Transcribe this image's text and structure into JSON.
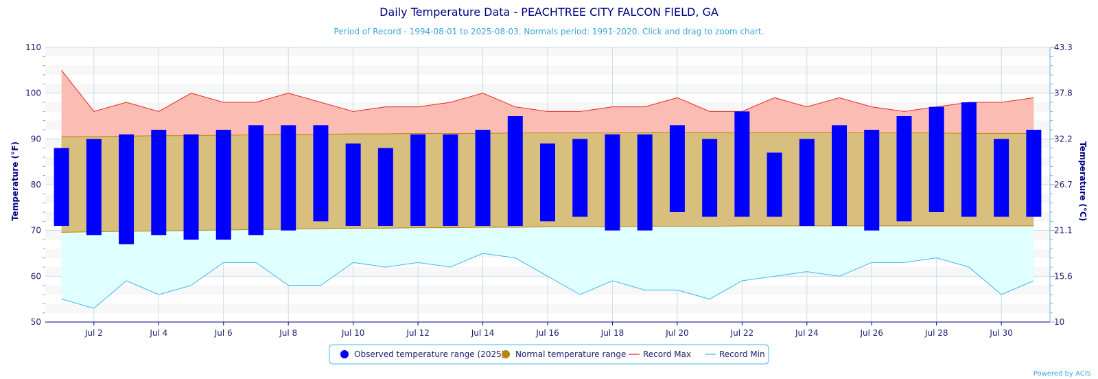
{
  "chart_data": {
    "type": "bar",
    "title": "Daily Temperature Data - PEACHTREE CITY FALCON FIELD, GA",
    "subtitle": "Period of Record - 1994-08-01 to 2025-08-03. Normals period: 1991-2020. Click and drag to zoom chart.",
    "ylabel_left": "Temperature (°F)",
    "ylabel_right": "Temperature (°C)",
    "ylim": [
      50,
      110
    ],
    "yticks_left": [
      "50",
      "60",
      "70",
      "80",
      "90",
      "100",
      "110"
    ],
    "yticks_right": [
      "10",
      "15.6",
      "21.1",
      "26.7",
      "32.2",
      "37.8",
      "43.3"
    ],
    "x_days": [
      1,
      31
    ],
    "x_tick_labels": [
      {
        "day": 2,
        "label": "Jul 2"
      },
      {
        "day": 4,
        "label": "Jul 4"
      },
      {
        "day": 6,
        "label": "Jul 6"
      },
      {
        "day": 8,
        "label": "Jul 8"
      },
      {
        "day": 10,
        "label": "Jul 10"
      },
      {
        "day": 12,
        "label": "Jul 12"
      },
      {
        "day": 14,
        "label": "Jul 14"
      },
      {
        "day": 16,
        "label": "Jul 16"
      },
      {
        "day": 18,
        "label": "Jul 18"
      },
      {
        "day": 20,
        "label": "Jul 20"
      },
      {
        "day": 22,
        "label": "Jul 22"
      },
      {
        "day": 24,
        "label": "Jul 24"
      },
      {
        "day": 26,
        "label": "Jul 26"
      },
      {
        "day": 28,
        "label": "Jul 28"
      },
      {
        "day": 30,
        "label": "Jul 30"
      }
    ],
    "grid": true,
    "legend_position": "bottom-center",
    "observed": [
      {
        "day": 1,
        "low": 71,
        "high": 88
      },
      {
        "day": 2,
        "low": 69,
        "high": 90
      },
      {
        "day": 3,
        "low": 67,
        "high": 91
      },
      {
        "day": 4,
        "low": 69,
        "high": 92
      },
      {
        "day": 5,
        "low": 68,
        "high": 91
      },
      {
        "day": 6,
        "low": 68,
        "high": 92
      },
      {
        "day": 7,
        "low": 69,
        "high": 93
      },
      {
        "day": 8,
        "low": 70,
        "high": 93
      },
      {
        "day": 9,
        "low": 72,
        "high": 93
      },
      {
        "day": 10,
        "low": 71,
        "high": 89
      },
      {
        "day": 11,
        "low": 71,
        "high": 88
      },
      {
        "day": 12,
        "low": 71,
        "high": 91
      },
      {
        "day": 13,
        "low": 71,
        "high": 91
      },
      {
        "day": 14,
        "low": 71,
        "high": 92
      },
      {
        "day": 15,
        "low": 71,
        "high": 95
      },
      {
        "day": 16,
        "low": 72,
        "high": 89
      },
      {
        "day": 17,
        "low": 73,
        "high": 90
      },
      {
        "day": 18,
        "low": 70,
        "high": 91
      },
      {
        "day": 19,
        "low": 70,
        "high": 91
      },
      {
        "day": 20,
        "low": 74,
        "high": 93
      },
      {
        "day": 21,
        "low": 73,
        "high": 90
      },
      {
        "day": 22,
        "low": 73,
        "high": 96
      },
      {
        "day": 23,
        "low": 73,
        "high": 87
      },
      {
        "day": 24,
        "low": 71,
        "high": 90
      },
      {
        "day": 25,
        "low": 71,
        "high": 93
      },
      {
        "day": 26,
        "low": 70,
        "high": 92
      },
      {
        "day": 27,
        "low": 72,
        "high": 95
      },
      {
        "day": 28,
        "low": 74,
        "high": 97
      },
      {
        "day": 29,
        "low": 73,
        "high": 98
      },
      {
        "day": 30,
        "low": 73,
        "high": 90
      },
      {
        "day": 31,
        "low": 73,
        "high": 92
      }
    ],
    "normal_high": [
      90.5,
      90.5,
      90.6,
      90.7,
      90.7,
      90.8,
      90.9,
      91.0,
      91.0,
      91.1,
      91.1,
      91.2,
      91.2,
      91.2,
      91.3,
      91.3,
      91.3,
      91.3,
      91.4,
      91.4,
      91.4,
      91.4,
      91.4,
      91.4,
      91.4,
      91.3,
      91.3,
      91.3,
      91.2,
      91.2,
      91.2
    ],
    "normal_low": [
      69.6,
      69.7,
      69.8,
      69.9,
      70.0,
      70.1,
      70.2,
      70.3,
      70.4,
      70.5,
      70.5,
      70.6,
      70.6,
      70.7,
      70.7,
      70.8,
      70.8,
      70.8,
      70.9,
      70.9,
      70.9,
      71.0,
      71.0,
      71.0,
      71.0,
      71.0,
      71.0,
      71.0,
      71.0,
      71.0,
      71.0
    ],
    "record_max": [
      105,
      96,
      98,
      96,
      100,
      98,
      98,
      100,
      98,
      96,
      97,
      97,
      98,
      100,
      97,
      96,
      96,
      97,
      97,
      99,
      96,
      96,
      99,
      97,
      99,
      97,
      96,
      97,
      98,
      98,
      99
    ],
    "record_min": [
      55,
      53,
      59,
      56,
      58,
      63,
      63,
      58,
      58,
      63,
      62,
      63,
      62,
      65,
      64,
      60,
      56,
      59,
      57,
      57,
      55,
      59,
      60,
      61,
      60,
      63,
      63,
      64,
      62,
      56,
      59
    ],
    "legend": [
      {
        "label": "Observed temperature range (2025)",
        "color": "#0000ff",
        "marker": "dot"
      },
      {
        "label": "Normal temperature range",
        "color": "#b8860b",
        "marker": "dot"
      },
      {
        "label": "Record Max",
        "color": "#e8261f",
        "marker": "line"
      },
      {
        "label": "Record Min",
        "color": "#3db8ef",
        "marker": "line"
      }
    ],
    "colors": {
      "observed": "#0000ff",
      "normal_fill": "#d9bf7e",
      "normal_line": "#b8860b",
      "record_max_fill": "#fbbcb3",
      "record_max_line": "#e8261f",
      "record_min_fill": "#e0ffff",
      "record_min_line": "#3db8ef",
      "grid": "#c7dceb"
    }
  },
  "credit": "Powered by ACIS"
}
